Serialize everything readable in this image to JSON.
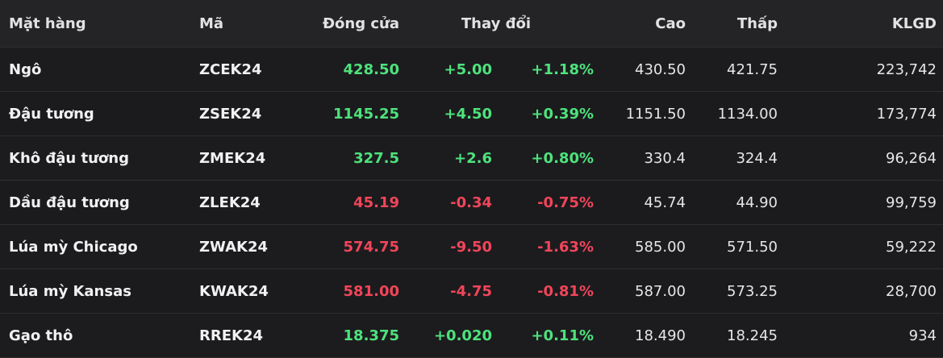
{
  "table": {
    "headers": {
      "name": "Mặt hàng",
      "code": "Mã",
      "close": "Đóng cửa",
      "change": "Thay đổi",
      "high": "Cao",
      "low": "Thấp",
      "volume": "KLGD"
    },
    "rows": [
      {
        "name": "Ngô",
        "code": "ZCEK24",
        "close": "428.50",
        "change": "+5.00",
        "pct": "+1.18%",
        "high": "430.50",
        "low": "421.75",
        "volume": "223,742",
        "direction": "up"
      },
      {
        "name": "Đậu tương",
        "code": "ZSEK24",
        "close": "1145.25",
        "change": "+4.50",
        "pct": "+0.39%",
        "high": "1151.50",
        "low": "1134.00",
        "volume": "173,774",
        "direction": "up"
      },
      {
        "name": "Khô đậu tương",
        "code": "ZMEK24",
        "close": "327.5",
        "change": "+2.6",
        "pct": "+0.80%",
        "high": "330.4",
        "low": "324.4",
        "volume": "96,264",
        "direction": "up"
      },
      {
        "name": "Dầu đậu tương",
        "code": "ZLEK24",
        "close": "45.19",
        "change": "-0.34",
        "pct": "-0.75%",
        "high": "45.74",
        "low": "44.90",
        "volume": "99,759",
        "direction": "down"
      },
      {
        "name": "Lúa mỳ Chicago",
        "code": "ZWAK24",
        "close": "574.75",
        "change": "-9.50",
        "pct": "-1.63%",
        "high": "585.00",
        "low": "571.50",
        "volume": "59,222",
        "direction": "down"
      },
      {
        "name": "Lúa mỳ Kansas",
        "code": "KWAK24",
        "close": "581.00",
        "change": "-4.75",
        "pct": "-0.81%",
        "high": "587.00",
        "low": "573.25",
        "volume": "28,700",
        "direction": "down"
      },
      {
        "name": "Gạo thô",
        "code": "RREK24",
        "close": "18.375",
        "change": "+0.020",
        "pct": "+0.11%",
        "high": "18.490",
        "low": "18.245",
        "volume": "934",
        "direction": "up"
      }
    ]
  },
  "colors": {
    "background": "#1b1b1d",
    "header_background": "#242427",
    "up": "#4ee27c",
    "down": "#f1455a",
    "text": "#f1f1f3"
  }
}
